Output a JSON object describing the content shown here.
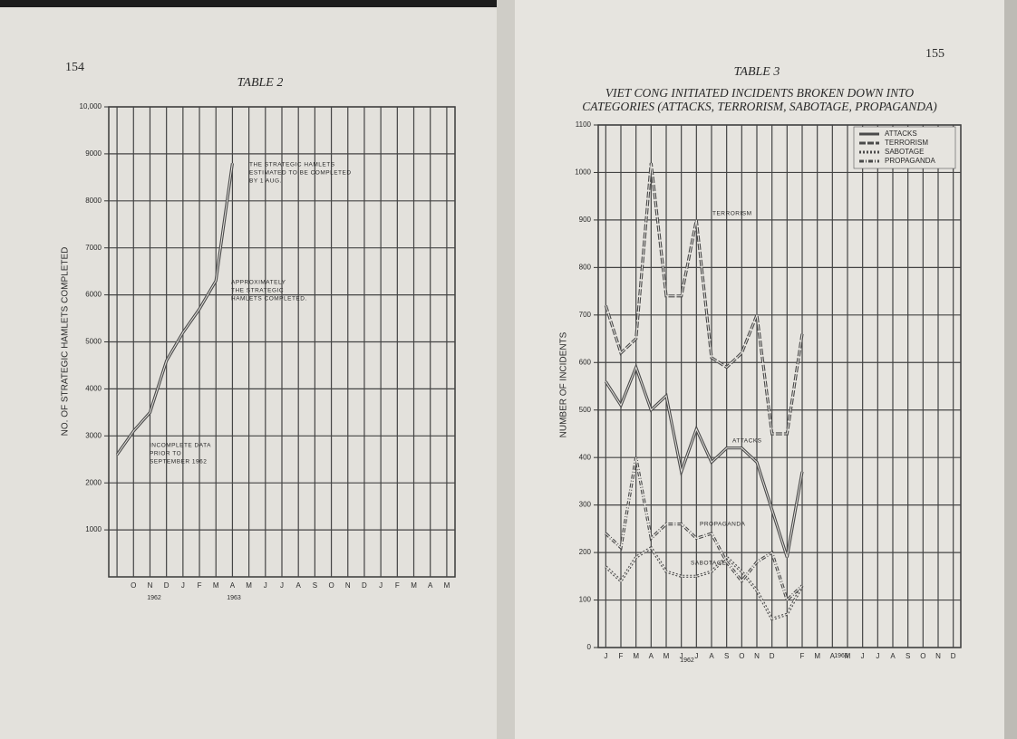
{
  "chart_data": [
    {
      "type": "line",
      "page_number": "154",
      "title": "TABLE 2",
      "y_label": "NO. OF STRATEGIC HAMLETS COMPLETED",
      "categories": [
        null,
        "O",
        "N",
        "D",
        "J",
        "F",
        "M",
        "A",
        "M",
        "J",
        "J",
        "A",
        "S",
        "O",
        "N",
        "D",
        "J",
        "F",
        "M",
        "A",
        "M"
      ],
      "year_labels": [
        "1962",
        "1963"
      ],
      "series": [
        {
          "name": "Strategic hamlets completed",
          "color": "#4a4a4a",
          "values": [
            2600,
            3100,
            3500,
            4600,
            5200,
            5700,
            6300,
            8800,
            null,
            null,
            null,
            null,
            null,
            null,
            null,
            null,
            null,
            null,
            null,
            null,
            null
          ]
        }
      ],
      "ylim": [
        0,
        10000
      ],
      "yticks": [
        1000,
        2000,
        3000,
        4000,
        5000,
        6000,
        7000,
        8000,
        9000,
        {
          "value": 10000,
          "label": "10,000"
        }
      ],
      "grid": true,
      "annotations": [
        [
          "THE STRATEGIC HAMLETS",
          "ESTIMATED TO BE COMPLETED",
          "BY 1 AUG."
        ],
        [
          "APPROXIMATELY",
          "THE STRATEGIC",
          "HAMLETS COMPLETED."
        ],
        [
          "INCOMPLETE DATA",
          "PRIOR TO",
          "SEPTEMBER 1962"
        ]
      ]
    },
    {
      "type": "line",
      "page_number": "155",
      "title": "TABLE 3",
      "subtitle": [
        "VIET CONG INITIATED INCIDENTS BROKEN DOWN INTO",
        "CATEGORIES (ATTACKS, TERRORISM, SABOTAGE, PROPAGANDA)"
      ],
      "y_label": "NUMBER OF INCIDENTS",
      "categories": [
        "J",
        "F",
        "M",
        "A",
        "M",
        "J",
        "J",
        "A",
        "S",
        "O",
        "N",
        "D",
        null,
        "F",
        "M",
        "A",
        "M",
        "J",
        "J",
        "A",
        "S",
        "O",
        "N",
        "D"
      ],
      "year_labels": [
        "1962",
        "1963"
      ],
      "series": [
        {
          "name": "ATTACKS",
          "color": "#4a4a4a",
          "values": [
            560,
            510,
            590,
            500,
            530,
            370,
            460,
            390,
            420,
            420,
            390,
            290,
            190,
            370,
            null,
            null,
            null,
            null,
            null,
            null,
            null,
            null,
            null,
            null
          ]
        },
        {
          "name": "TERRORISM",
          "color": "#4a4a4a",
          "values": [
            720,
            620,
            650,
            1020,
            740,
            740,
            900,
            610,
            590,
            620,
            700,
            450,
            450,
            660,
            null,
            null,
            null,
            null,
            null,
            null,
            null,
            null,
            null,
            null
          ]
        },
        {
          "name": "SABOTAGE",
          "color": "#4a4a4a",
          "values": [
            170,
            140,
            190,
            210,
            160,
            150,
            150,
            160,
            190,
            160,
            120,
            60,
            70,
            130,
            null,
            null,
            null,
            null,
            null,
            null,
            null,
            null,
            null,
            null
          ]
        },
        {
          "name": "PROPAGANDA",
          "color": "#4a4a4a",
          "values": [
            240,
            210,
            400,
            230,
            260,
            260,
            230,
            240,
            180,
            140,
            180,
            200,
            100,
            130,
            null,
            null,
            null,
            null,
            null,
            null,
            null,
            null,
            null,
            null
          ]
        }
      ],
      "ylim": [
        0,
        1100
      ],
      "yticks": [
        0,
        100,
        200,
        300,
        400,
        500,
        600,
        700,
        800,
        900,
        1000,
        1100
      ],
      "grid": true,
      "legend": "top-right",
      "annotations": [
        [
          "TERRORISM"
        ],
        [
          "ATTACKS"
        ],
        [
          "PROPAGANDA"
        ],
        [
          "SABOTAGE"
        ]
      ]
    }
  ]
}
